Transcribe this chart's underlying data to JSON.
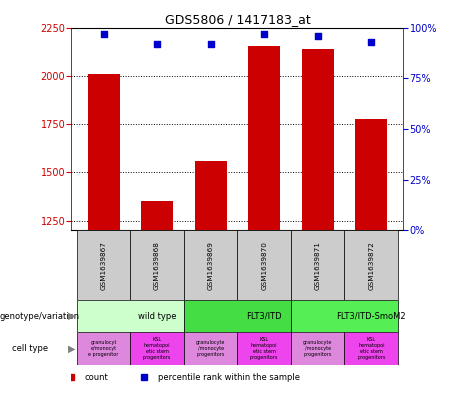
{
  "title": "GDS5806 / 1417183_at",
  "samples": [
    "GSM1639867",
    "GSM1639868",
    "GSM1639869",
    "GSM1639870",
    "GSM1639871",
    "GSM1639872"
  ],
  "counts": [
    2010,
    1355,
    1560,
    2155,
    2140,
    1775
  ],
  "percentiles": [
    97,
    92,
    92,
    97,
    96,
    93
  ],
  "ylim_left": [
    1200,
    2250
  ],
  "ylim_right": [
    0,
    100
  ],
  "yticks_left": [
    1250,
    1500,
    1750,
    2000,
    2250
  ],
  "yticks_right": [
    0,
    25,
    50,
    75,
    100
  ],
  "bar_color": "#cc0000",
  "dot_color": "#0000cc",
  "genotype_groups": [
    {
      "label": "wild type",
      "start": 0,
      "end": 2,
      "color": "#ccffcc"
    },
    {
      "label": "FLT3/ITD",
      "start": 2,
      "end": 4,
      "color": "#44dd44"
    },
    {
      "label": "FLT3/ITD-SmoM2",
      "start": 4,
      "end": 6,
      "color": "#55ee55"
    }
  ],
  "cell_types": [
    {
      "label": "granulocyt\ne/monocyt\ne progenitor",
      "color": "#dd88dd"
    },
    {
      "label": "KSL\nhematopoi\netic stem\nprogenitors",
      "color": "#ee44ee"
    },
    {
      "label": "granulocyte\n/monocyte\nprogenitors",
      "color": "#dd88dd"
    },
    {
      "label": "KSL\nhematopoi\netic stem\nprogenitors",
      "color": "#ee44ee"
    },
    {
      "label": "granulocyte\n/monocyte\nprogenitors",
      "color": "#dd88dd"
    },
    {
      "label": "KSL\nhematopoi\netic stem\nprogenitors",
      "color": "#ee44ee"
    }
  ],
  "left_label_color": "#cc0000",
  "right_label_color": "#0000cc",
  "sample_box_color": "#cccccc",
  "genotype_label": "genotype/variation",
  "celltype_label": "cell type"
}
